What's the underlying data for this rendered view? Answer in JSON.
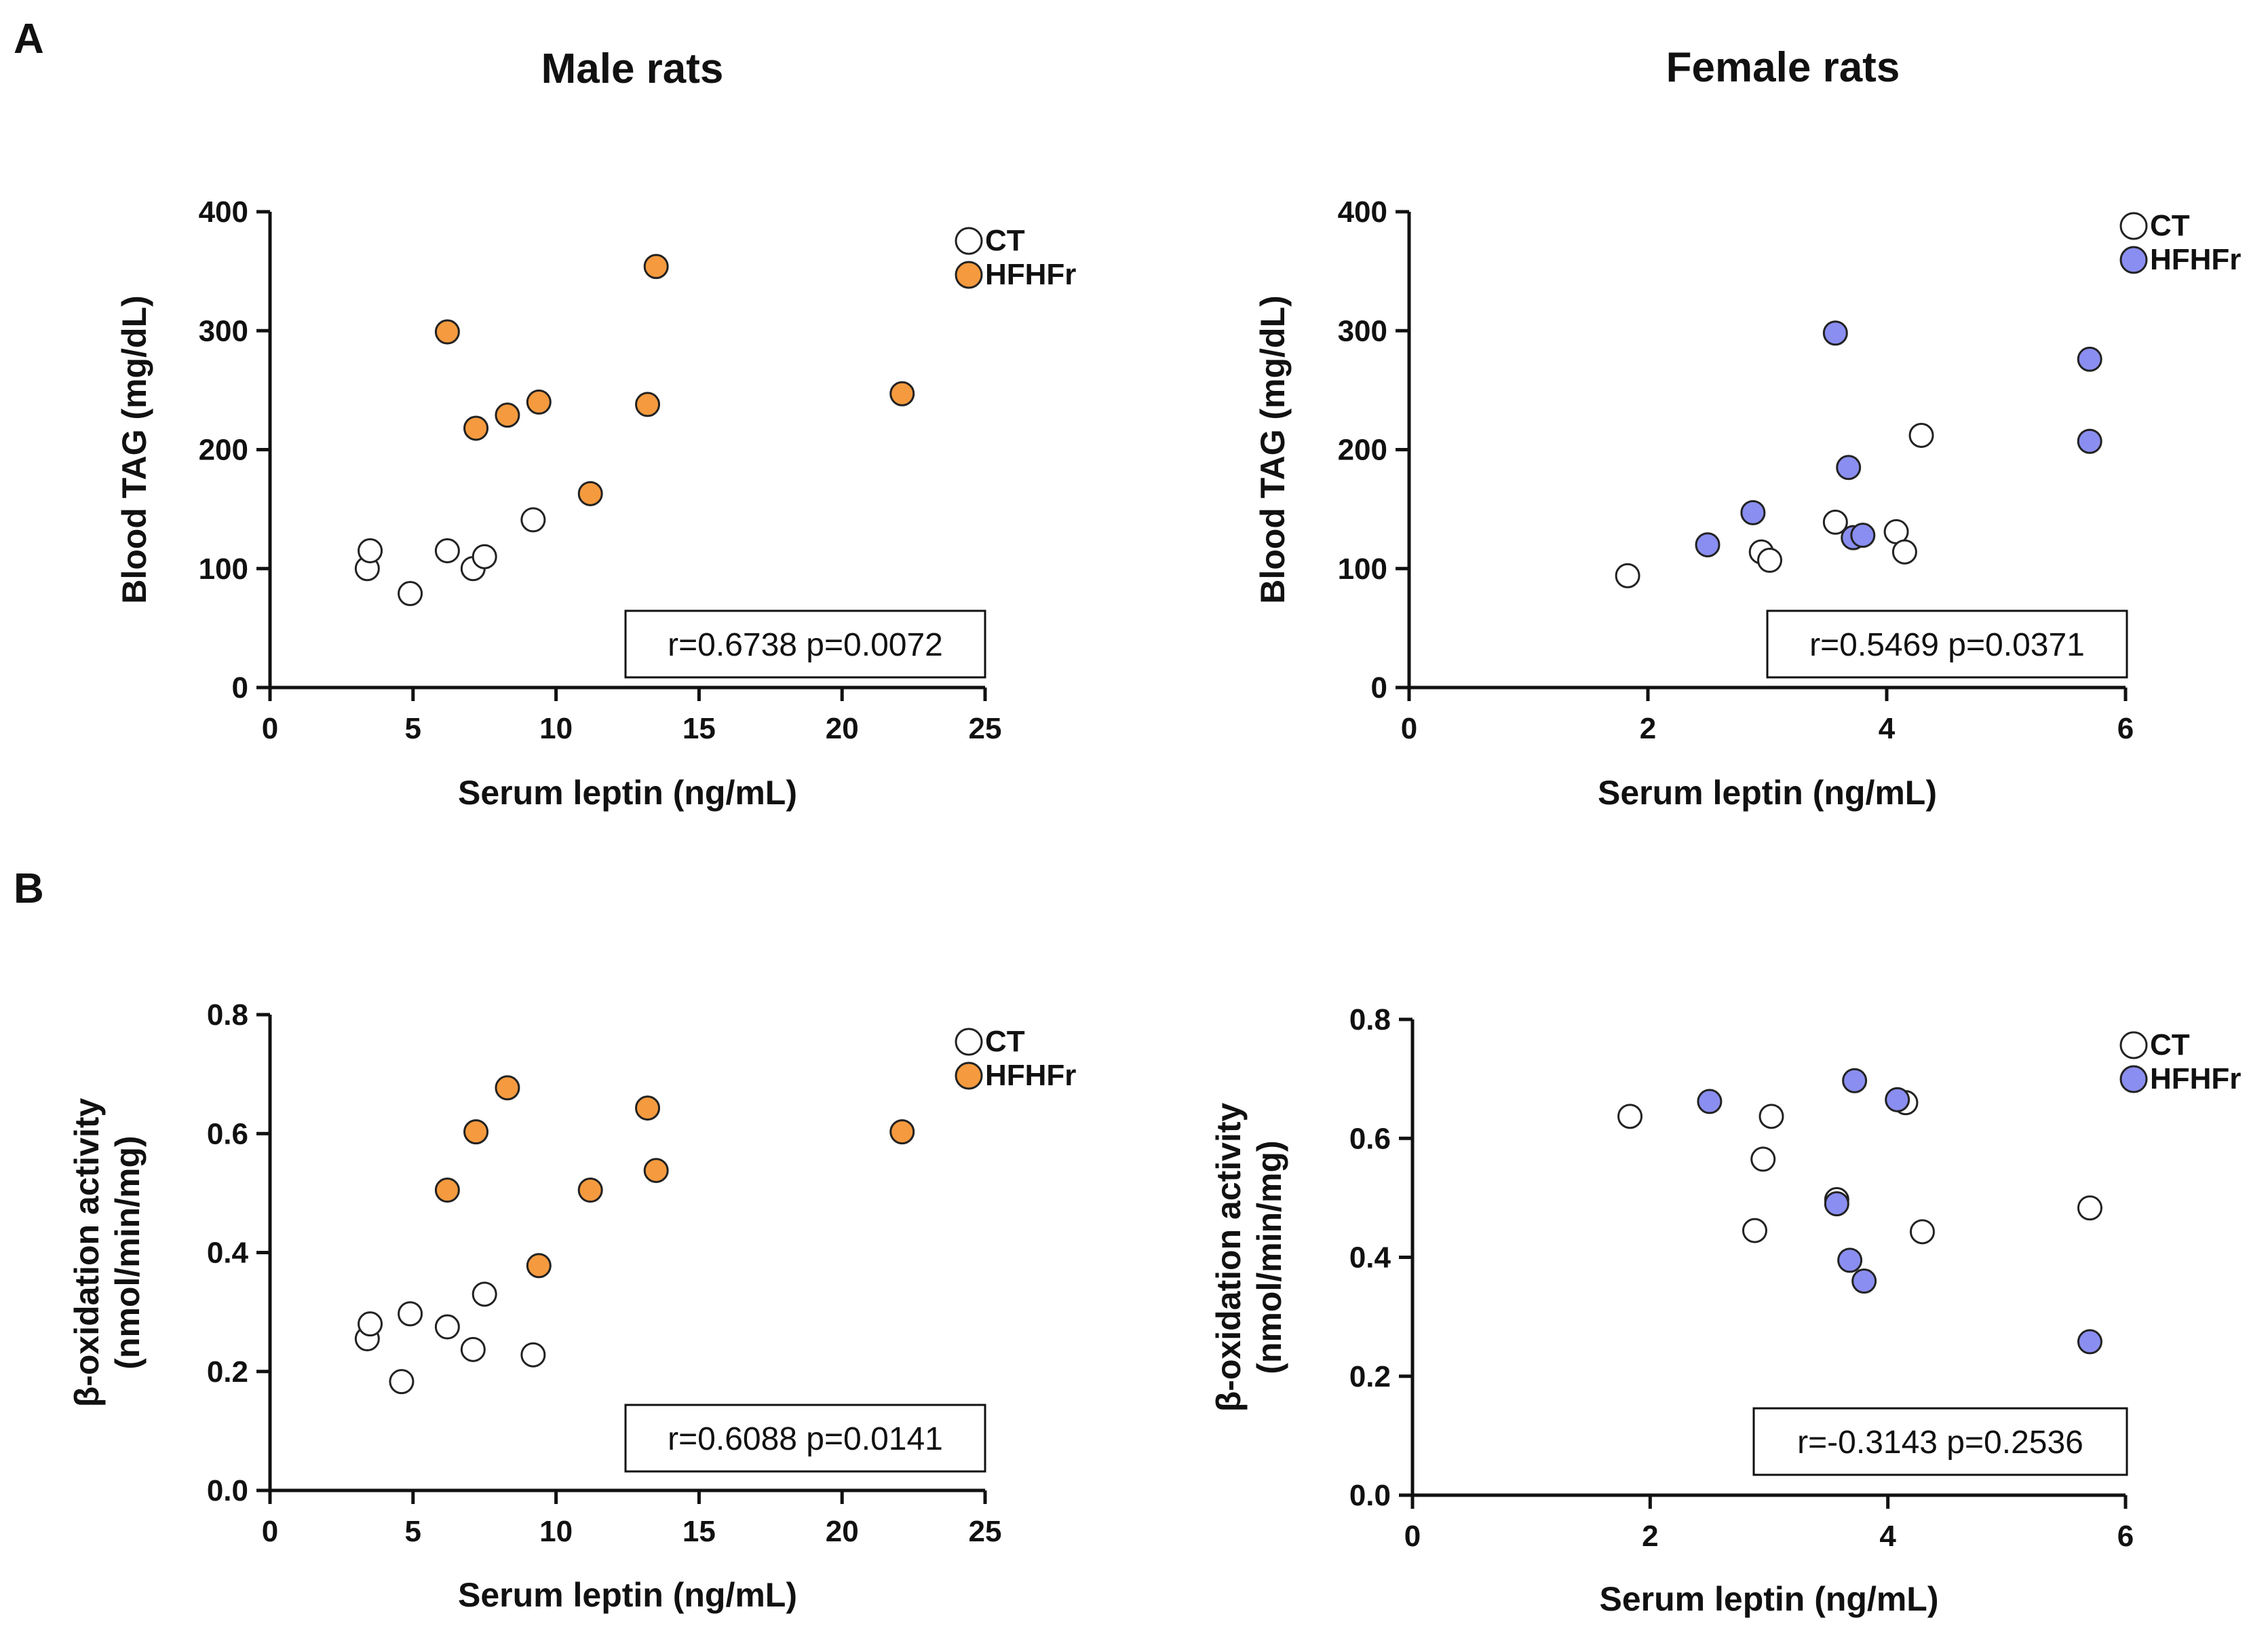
{
  "figure": {
    "panel_a_label": "A",
    "panel_b_label": "B",
    "male_title": "Male rats",
    "female_title": "Female rats"
  },
  "colors": {
    "ct_fill": "#ffffff",
    "male_hfhfr_fill": "#f59a3e",
    "female_hfhfr_fill": "#8a8ef0",
    "point_stroke": "#222222"
  },
  "chart_data": [
    {
      "id": "a-male",
      "type": "scatter",
      "xlabel": "Serum leptin (ng/mL)",
      "ylabel_lines": [
        "Blood TAG (mg/dL)"
      ],
      "xlim": [
        0,
        25
      ],
      "ylim": [
        0,
        400
      ],
      "xticks": [
        0,
        5,
        10,
        15,
        20,
        25
      ],
      "yticks": [
        0,
        100,
        200,
        300,
        400
      ],
      "ytick_labels": [
        "0",
        "100",
        "200",
        "300",
        "400"
      ],
      "grid": false,
      "legend": [
        "CT",
        "HFHFr"
      ],
      "stats": "r=0.6738 p=0.0072",
      "series": [
        {
          "name": "CT",
          "color": "#ffffff",
          "points": [
            [
              3.4,
              100
            ],
            [
              3.5,
              115
            ],
            [
              4.9,
              79
            ],
            [
              6.2,
              115
            ],
            [
              7.1,
              100
            ],
            [
              7.5,
              110
            ],
            [
              9.2,
              141
            ]
          ]
        },
        {
          "name": "HFHFr",
          "color": "#f59a3e",
          "points": [
            [
              6.2,
              299
            ],
            [
              7.2,
              218
            ],
            [
              8.3,
              229
            ],
            [
              9.4,
              240
            ],
            [
              11.2,
              163
            ],
            [
              13.2,
              238
            ],
            [
              13.5,
              354
            ],
            [
              22.1,
              247
            ]
          ]
        }
      ]
    },
    {
      "id": "a-female",
      "type": "scatter",
      "xlabel": "Serum leptin (ng/mL)",
      "ylabel_lines": [
        "Blood TAG (mg/dL)"
      ],
      "xlim": [
        0,
        6
      ],
      "ylim": [
        0,
        400
      ],
      "xticks": [
        0,
        2,
        4,
        6
      ],
      "yticks": [
        0,
        100,
        200,
        300,
        400
      ],
      "ytick_labels": [
        "0",
        "100",
        "200",
        "300",
        "400"
      ],
      "grid": false,
      "legend": [
        "CT",
        "HFHFr"
      ],
      "stats": "r=0.5469 p=0.0371",
      "series": [
        {
          "name": "CT",
          "color": "#ffffff",
          "points": [
            [
              1.83,
              94
            ],
            [
              2.95,
              114
            ],
            [
              3.02,
              107
            ],
            [
              3.57,
              139
            ],
            [
              4.08,
              131
            ],
            [
              4.15,
              114
            ],
            [
              4.29,
              212
            ]
          ]
        },
        {
          "name": "HFHFr",
          "color": "#8a8ef0",
          "points": [
            [
              2.5,
              120
            ],
            [
              2.88,
              147
            ],
            [
              3.57,
              298
            ],
            [
              3.68,
              185
            ],
            [
              3.72,
              126
            ],
            [
              3.8,
              128
            ],
            [
              5.7,
              276
            ],
            [
              5.7,
              207
            ]
          ]
        }
      ]
    },
    {
      "id": "b-male",
      "type": "scatter",
      "xlabel": "Serum leptin (ng/mL)",
      "ylabel_lines": [
        "β-oxidation activity",
        "(nmol/min/mg)"
      ],
      "xlim": [
        0,
        25
      ],
      "ylim": [
        0,
        0.8
      ],
      "xticks": [
        0,
        5,
        10,
        15,
        20,
        25
      ],
      "yticks": [
        0,
        0.2,
        0.4,
        0.6,
        0.8
      ],
      "ytick_labels": [
        "0.0",
        "0.2",
        "0.4",
        "0.6",
        "0.8"
      ],
      "grid": false,
      "legend": [
        "CT",
        "HFHFr"
      ],
      "stats": "r=0.6088 p=0.0141",
      "series": [
        {
          "name": "CT",
          "color": "#ffffff",
          "points": [
            [
              3.4,
              0.255
            ],
            [
              3.5,
              0.28
            ],
            [
              4.6,
              0.183
            ],
            [
              4.9,
              0.297
            ],
            [
              6.2,
              0.275
            ],
            [
              7.1,
              0.237
            ],
            [
              7.5,
              0.33
            ],
            [
              9.2,
              0.228
            ]
          ]
        },
        {
          "name": "HFHFr",
          "color": "#f59a3e",
          "points": [
            [
              6.2,
              0.505
            ],
            [
              7.2,
              0.603
            ],
            [
              8.3,
              0.677
            ],
            [
              9.4,
              0.378
            ],
            [
              11.2,
              0.505
            ],
            [
              13.2,
              0.643
            ],
            [
              13.5,
              0.538
            ],
            [
              22.1,
              0.603
            ]
          ]
        }
      ]
    },
    {
      "id": "b-female",
      "type": "scatter",
      "xlabel": "Serum leptin (ng/mL)",
      "ylabel_lines": [
        "β-oxidation activity",
        "(nmol/min/mg)"
      ],
      "xlim": [
        0,
        6
      ],
      "ylim": [
        0,
        0.8
      ],
      "xticks": [
        0,
        2,
        4,
        6
      ],
      "yticks": [
        0,
        0.2,
        0.4,
        0.6,
        0.8
      ],
      "ytick_labels": [
        "0.0",
        "0.2",
        "0.4",
        "0.6",
        "0.8"
      ],
      "grid": false,
      "legend": [
        "CT",
        "HFHFr"
      ],
      "stats": "r=-0.3143 p=0.2536",
      "series": [
        {
          "name": "CT",
          "color": "#ffffff",
          "points": [
            [
              1.83,
              0.637
            ],
            [
              2.95,
              0.565
            ],
            [
              3.02,
              0.637
            ],
            [
              2.88,
              0.445
            ],
            [
              3.57,
              0.497
            ],
            [
              4.15,
              0.66
            ],
            [
              4.29,
              0.443
            ],
            [
              5.7,
              0.483
            ]
          ]
        },
        {
          "name": "HFHFr",
          "color": "#8a8ef0",
          "points": [
            [
              2.5,
              0.662
            ],
            [
              3.57,
              0.49
            ],
            [
              3.68,
              0.395
            ],
            [
              3.72,
              0.697
            ],
            [
              3.8,
              0.36
            ],
            [
              4.08,
              0.665
            ],
            [
              5.7,
              0.258
            ]
          ]
        }
      ]
    }
  ]
}
